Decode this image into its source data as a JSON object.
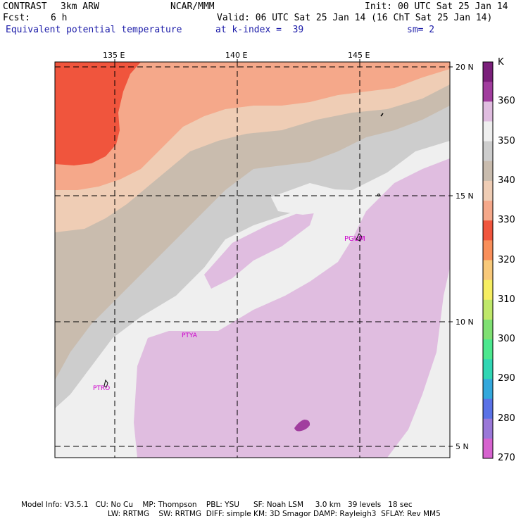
{
  "header": {
    "model": "CONTRAST",
    "resolution": "3km ARW",
    "center": "NCAR/MMM",
    "init": "Init: 00 UTC Sat 25 Jan 14",
    "fcst_label": "Fcst:",
    "fcst_value": "6 h",
    "valid": "Valid: 06 UTC Sat 25 Jan 14 (16 ChT Sat 25 Jan 14)",
    "field": "Equivalent potential temperature",
    "level": "at k-index =  39",
    "smoothing": "sm= 2"
  },
  "axes": {
    "lon_labels": [
      "135 E",
      "140 E",
      "145 E"
    ],
    "lat_labels": [
      "20 N",
      "15 N",
      "10 N",
      "5 N"
    ]
  },
  "stations": [
    "PGUM",
    "PTYA",
    "PTRO"
  ],
  "colorbar": {
    "unit": "K",
    "labels": [
      "360",
      "350",
      "340",
      "330",
      "320",
      "310",
      "300",
      "290",
      "280",
      "270"
    ],
    "colors": [
      "#7a1f7a",
      "#a13d9e",
      "#e0bde0",
      "#efefef",
      "#cdcdcd",
      "#c9bcae",
      "#efcdb5",
      "#f5a88a",
      "#f0553d",
      "#f98f5a",
      "#f8c97a",
      "#f6ee62",
      "#bfe86a",
      "#7fe073",
      "#4ce88f",
      "#31d6b4",
      "#34a8dc",
      "#5a72e6",
      "#9a78d8",
      "#d663cf"
    ]
  },
  "footer": {
    "line1": "Model Info: V3.5.1   CU: No Cu    MP: Thompson    PBL: YSU      SF: Noah LSM     3.0 km   39 levels   18 sec",
    "line2": "LW: RRTMG    SW: RRTMG  DIFF: simple KM: 3D Smagor DAMP: Rayleigh3  SFLAY: Rev MM5"
  }
}
